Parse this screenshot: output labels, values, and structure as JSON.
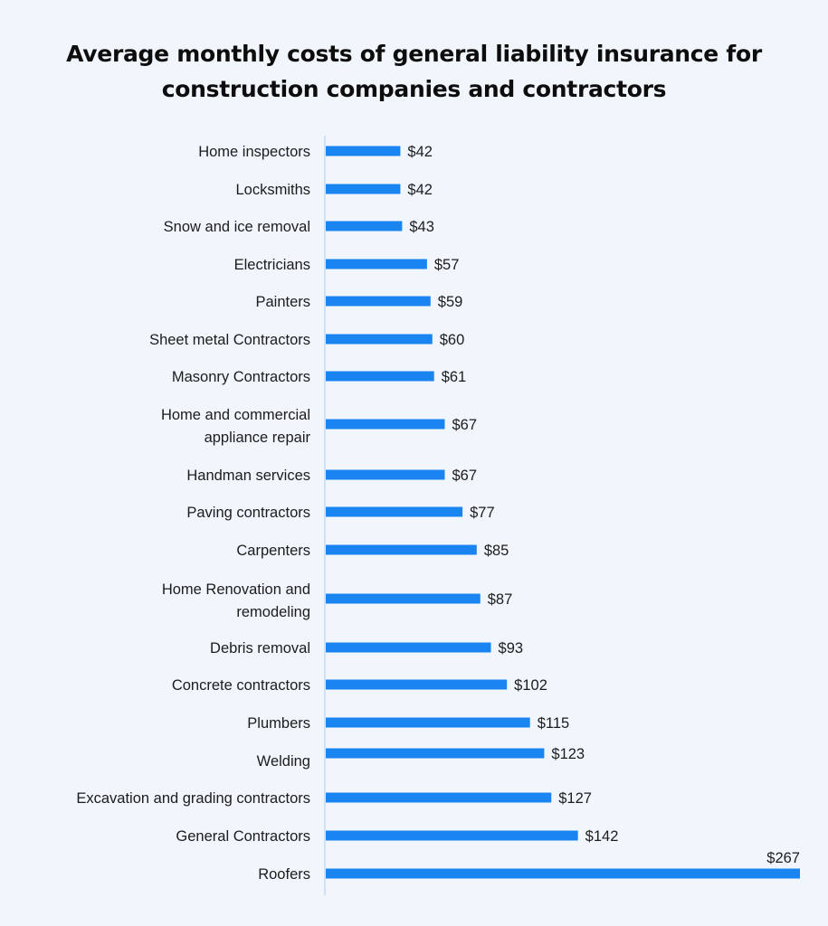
{
  "chart_data": {
    "type": "bar",
    "orientation": "horizontal",
    "title": "Average monthly costs of general liability insurance for construction companies and contractors",
    "categories": [
      "Home inspectors",
      "Locksmiths",
      "Snow and ice removal",
      "Electricians",
      "Painters",
      "Sheet metal Contractors",
      "Masonry Contractors",
      "Home and commercial appliance repair",
      "Handman services",
      "Paving contractors",
      "Carpenters",
      "Home Renovation and remodeling",
      "Debris removal",
      "Concrete contractors",
      "Plumbers",
      "Welding",
      "Excavation and grading contractors",
      "General Contractors",
      "Roofers"
    ],
    "values": [
      42,
      42,
      43,
      57,
      59,
      60,
      61,
      67,
      67,
      77,
      85,
      87,
      93,
      102,
      115,
      123,
      127,
      142,
      267
    ],
    "data_labels": [
      "$42",
      "$42",
      "$43",
      "$57",
      "$59",
      "$60",
      "$61",
      "$67",
      "$67",
      "$77",
      "$85",
      "$87",
      "$93",
      "$102",
      "$115",
      "$123",
      "$127",
      "$142",
      "$267"
    ],
    "xlim": [
      0,
      267
    ],
    "grid": false,
    "bar_color": "#1a84f0",
    "axis_color": "#cfe0f3"
  }
}
